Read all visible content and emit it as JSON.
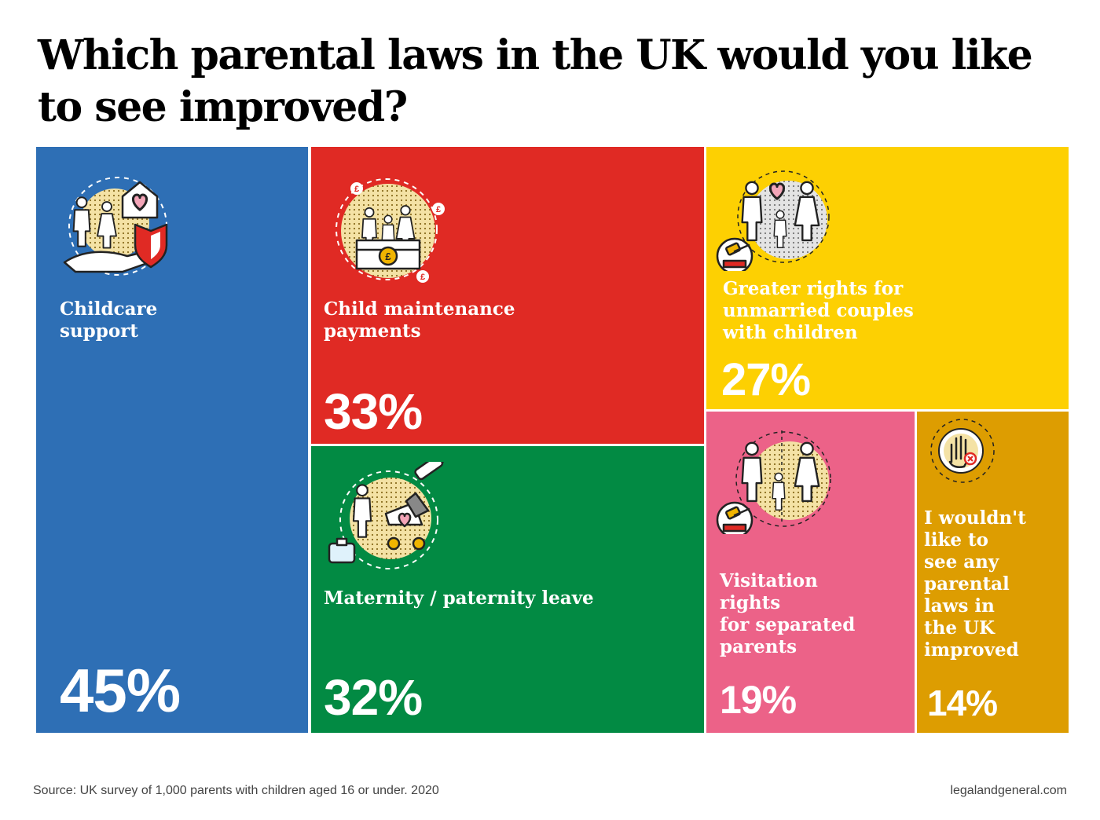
{
  "title": "Which parental laws in the UK would you like to see improved?",
  "chart_data": {
    "type": "treemap",
    "title": "Which parental laws in the UK would you like to see improved?",
    "unit": "%",
    "items": [
      {
        "id": "childcare",
        "label": "Childcare\nsupport",
        "value": 45,
        "value_label": "45%",
        "color": "#2e6fb5",
        "text_color": "#ffffff",
        "icon": "childcare-icon"
      },
      {
        "id": "maintenance",
        "label": "Child maintenance\npayments",
        "value": 33,
        "value_label": "33%",
        "color": "#e02a24",
        "text_color": "#ffffff",
        "icon": "child-maintenance-icon"
      },
      {
        "id": "leave",
        "label": "Maternity /  paternity leave",
        "value": 32,
        "value_label": "32%",
        "color": "#028a43",
        "text_color": "#ffffff",
        "icon": "parental-leave-icon"
      },
      {
        "id": "unmarried",
        "label": "Greater rights for\nunmarried couples\nwith children",
        "value": 27,
        "value_label": "27%",
        "color": "#fdd002",
        "text_color": "#ffffff",
        "icon": "unmarried-family-icon"
      },
      {
        "id": "visitation",
        "label": "Visitation\nrights\nfor separated\nparents",
        "value": 19,
        "value_label": "19%",
        "color": "#ec6288",
        "text_color": "#ffffff",
        "icon": "visitation-family-icon"
      },
      {
        "id": "none",
        "label": "I wouldn't\nlike to\nsee any\nparental\nlaws in\nthe UK\nimproved",
        "value": 14,
        "value_label": "14%",
        "color": "#dd9d01",
        "text_color": "#ffffff",
        "icon": "stop-hand-icon"
      }
    ]
  },
  "footer": {
    "source": "Source: UK survey of 1,000 parents with children aged 16 or under. 2020",
    "site": "legalandgeneral.com"
  }
}
